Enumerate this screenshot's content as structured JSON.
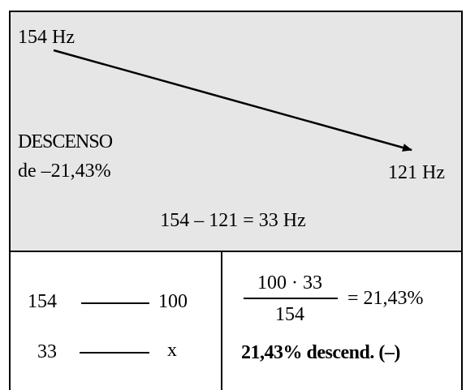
{
  "top": {
    "start_label": "154 Hz",
    "end_label": "121 Hz",
    "descent_word": "DESCENSO",
    "descent_value": "de –21,43%"
  },
  "middle": {
    "equation": "154 – 121 = 33 Hz"
  },
  "bottom_left": {
    "row1_left": "154",
    "row1_right": "100",
    "row2_left": "33",
    "row2_right": "x"
  },
  "bottom_right": {
    "numerator": "100 · 33",
    "denominator": "154",
    "result": "= 21,43%",
    "conclusion": "21,43% descend. (–)"
  }
}
